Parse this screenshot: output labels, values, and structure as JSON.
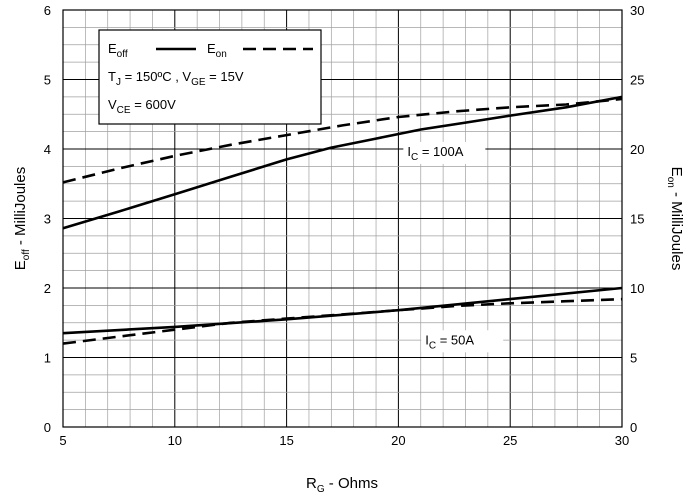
{
  "chart_data": {
    "type": "line",
    "x_axis": {
      "label_main": "R",
      "label_sub": "G",
      "label_rest": " - Ohms",
      "range": [
        5,
        30
      ],
      "ticks": [
        "5",
        "10",
        "15",
        "20",
        "25",
        "30"
      ],
      "minor_step": 1
    },
    "y_left": {
      "label_main": "E",
      "label_sub": "off",
      "label_rest": " - MilliJoules",
      "range": [
        0,
        6
      ],
      "ticks": [
        "0",
        "1",
        "2",
        "3",
        "4",
        "5",
        "6"
      ],
      "minor_step": 0.25
    },
    "y_right": {
      "label_main": "E",
      "label_sub": "on",
      "label_rest": " - MilliJoules",
      "range": [
        0,
        30
      ],
      "ticks": [
        "0",
        "5",
        "10",
        "15",
        "20",
        "25",
        "30"
      ]
    },
    "grid": true,
    "legend": {
      "placement": "top-left",
      "eoff": {
        "main": "E",
        "sub": "off"
      },
      "eon": {
        "main": "E",
        "sub": "on"
      },
      "cond1": {
        "a": "T",
        "a_sub": "J",
        "b": " = 150ºC ,  V",
        "b_sub": "GE",
        "c": " = 15V"
      },
      "cond2": {
        "a": "V",
        "a_sub": "CE",
        "b": " = 600V"
      }
    },
    "annotations": [
      {
        "main": "I",
        "sub": "C",
        "rest": " = 100A",
        "x": 20.4,
        "y": 3.9
      },
      {
        "main": "I",
        "sub": "C",
        "rest": " = 50A",
        "x": 21.2,
        "y": 1.19
      }
    ],
    "series": [
      {
        "axis": "left",
        "dash": false,
        "x": [
          5,
          7.5,
          10,
          12.5,
          15,
          17,
          19,
          21,
          23,
          25,
          27.5,
          30
        ],
        "y": [
          2.86,
          3.1,
          3.35,
          3.6,
          3.85,
          4.02,
          4.15,
          4.28,
          4.38,
          4.48,
          4.6,
          4.75
        ]
      },
      {
        "axis": "right",
        "dash": true,
        "x": [
          5,
          7.5,
          10,
          12.5,
          15,
          17.5,
          20,
          22.5,
          25,
          27.5,
          30
        ],
        "y": [
          17.6,
          18.6,
          19.5,
          20.3,
          21,
          21.7,
          22.3,
          22.7,
          23,
          23.2,
          23.6
        ]
      },
      {
        "axis": "left",
        "dash": false,
        "x": [
          5,
          10,
          15,
          20,
          25,
          30
        ],
        "y": [
          1.35,
          1.44,
          1.55,
          1.68,
          1.84,
          2.0
        ]
      },
      {
        "axis": "right",
        "dash": true,
        "x": [
          5,
          7.5,
          10,
          12.5,
          15,
          17.5,
          20,
          22.5,
          25,
          27.5,
          30
        ],
        "y": [
          6.0,
          6.5,
          7.0,
          7.5,
          7.8,
          8.1,
          8.4,
          8.7,
          8.9,
          9.05,
          9.2
        ]
      }
    ]
  }
}
